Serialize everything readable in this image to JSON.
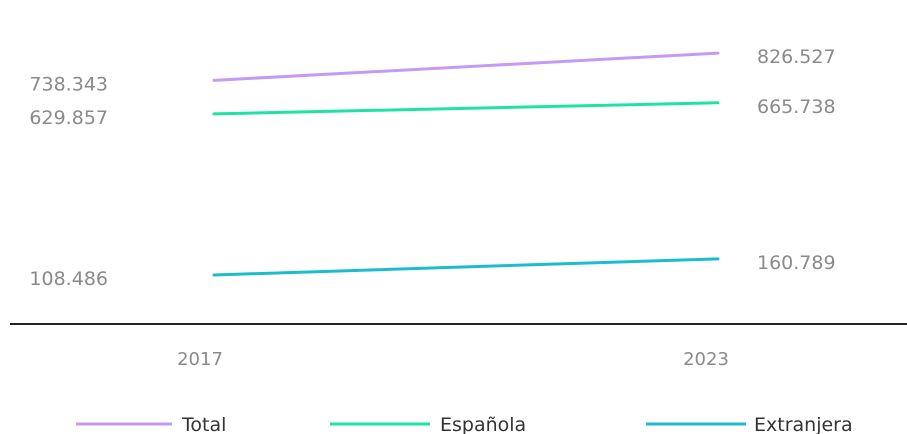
{
  "chart_data": {
    "type": "line",
    "categories": [
      "2017",
      "2023"
    ],
    "series": [
      {
        "name": "Total",
        "values": [
          738343,
          826527
        ],
        "labels": [
          "738.343",
          "826.527"
        ],
        "color": "#c59af5"
      },
      {
        "name": "Española",
        "values": [
          629857,
          665738
        ],
        "labels": [
          "629.857",
          "665.738"
        ],
        "color": "#1fe3a6"
      },
      {
        "name": "Extranjera",
        "values": [
          108486,
          160789
        ],
        "labels": [
          "108.486",
          "160.789"
        ],
        "color": "#1bbccc"
      }
    ],
    "ylim": [
      0,
      900000
    ],
    "grid": false,
    "legend_position": "bottom",
    "axis_color": "#222222"
  }
}
